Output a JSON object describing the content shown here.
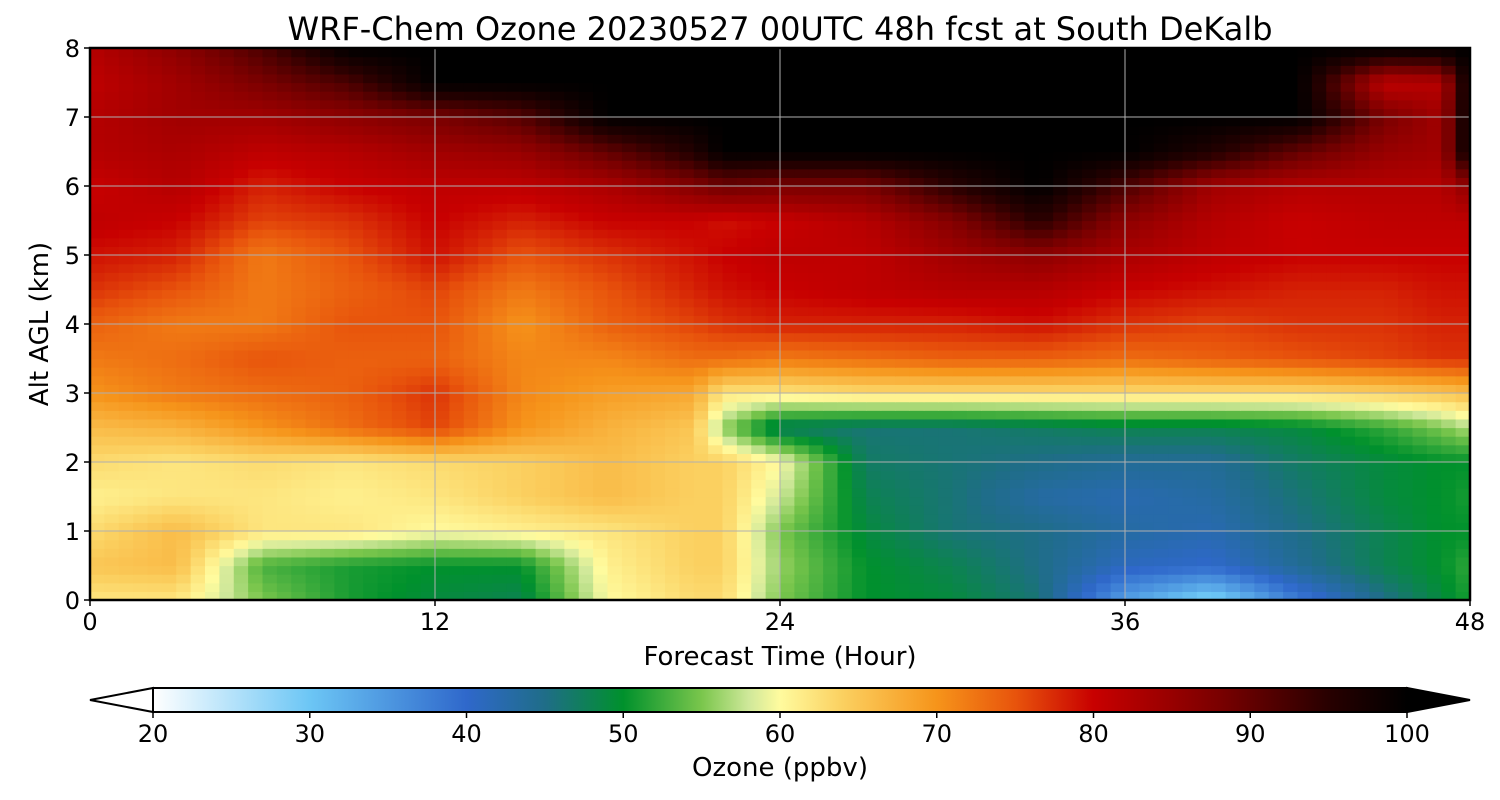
{
  "chart_data": {
    "type": "heatmap",
    "title": "WRF-Chem Ozone  20230527 00UTC 48h fcst at South DeKalb",
    "xlabel": "Forecast Time (Hour)",
    "ylabel": "Alt AGL (km)",
    "xlim": [
      0,
      48
    ],
    "ylim": [
      0,
      8
    ],
    "xticks": [
      "0",
      "12",
      "24",
      "36",
      "48"
    ],
    "yticks": [
      "0",
      "1",
      "2",
      "3",
      "4",
      "5",
      "6",
      "7",
      "8"
    ],
    "grid": true,
    "x": [
      0,
      3,
      6,
      9,
      12,
      15,
      18,
      21,
      22,
      24,
      27,
      30,
      33,
      36,
      39,
      42,
      45,
      47,
      48
    ],
    "y": [
      0,
      0.5,
      1,
      1.5,
      2,
      2.5,
      3,
      3.5,
      4,
      4.5,
      5,
      5.5,
      6,
      6.5,
      7,
      7.5,
      8
    ],
    "z": [
      [
        62,
        62,
        55,
        51,
        49,
        48,
        60,
        63,
        63,
        55,
        50,
        49,
        46,
        34,
        28,
        38,
        45,
        49,
        51
      ],
      [
        65,
        66,
        53,
        51,
        50,
        50,
        61,
        64,
        64,
        56,
        50,
        48,
        45,
        41,
        40,
        44,
        48,
        50,
        52
      ],
      [
        63,
        66,
        62,
        62,
        60,
        61,
        62,
        64,
        64,
        55,
        49,
        46,
        45,
        43,
        42,
        45,
        48,
        50,
        50
      ],
      [
        61,
        62,
        62,
        61,
        62,
        64,
        66,
        64,
        64,
        58,
        48,
        46,
        43,
        42,
        43,
        46,
        49,
        50,
        51
      ],
      [
        63,
        62,
        63,
        62,
        63,
        64,
        66,
        64,
        64,
        60,
        47,
        46,
        45,
        44,
        44,
        47,
        49,
        50,
        50
      ],
      [
        66,
        67,
        70,
        73,
        76,
        70,
        67,
        65,
        56,
        47,
        46,
        46,
        47,
        48,
        48,
        49,
        52,
        55,
        57
      ],
      [
        70,
        72,
        73,
        74,
        77,
        71,
        69,
        68,
        62,
        62,
        63,
        63,
        63,
        63,
        63,
        63,
        64,
        65,
        66
      ],
      [
        72,
        73,
        75,
        74,
        74,
        71,
        71,
        73,
        73,
        72,
        73,
        74,
        74,
        73,
        74,
        75,
        76,
        77,
        77
      ],
      [
        74,
        72,
        72,
        75,
        75,
        70,
        74,
        76,
        77,
        78,
        78,
        78,
        79,
        77,
        76,
        77,
        77,
        78,
        78
      ],
      [
        77,
        75,
        72,
        74,
        76,
        72,
        75,
        78,
        79,
        80,
        81,
        82,
        82,
        80,
        79,
        78,
        78,
        79,
        79
      ],
      [
        79,
        78,
        72,
        75,
        79,
        75,
        77,
        79,
        80,
        81,
        81,
        84,
        86,
        83,
        81,
        80,
        80,
        80,
        80
      ],
      [
        81,
        80,
        76,
        77,
        80,
        78,
        80,
        80,
        79,
        80,
        82,
        87,
        95,
        86,
        82,
        80,
        81,
        81,
        81
      ],
      [
        80,
        82,
        78,
        80,
        81,
        81,
        83,
        87,
        89,
        88,
        88,
        95,
        100,
        92,
        84,
        82,
        82,
        82,
        86
      ],
      [
        82,
        83,
        81,
        82,
        84,
        85,
        90,
        96,
        100,
        100,
        100,
        100,
        100,
        100,
        96,
        90,
        85,
        84,
        100
      ],
      [
        82,
        84,
        84,
        86,
        88,
        91,
        100,
        100,
        100,
        100,
        100,
        100,
        100,
        100,
        100,
        100,
        88,
        84,
        100
      ],
      [
        81,
        84,
        88,
        92,
        100,
        100,
        100,
        100,
        100,
        100,
        100,
        100,
        100,
        100,
        100,
        100,
        81,
        82,
        100
      ],
      [
        82,
        86,
        92,
        100,
        100,
        100,
        100,
        100,
        100,
        100,
        100,
        100,
        100,
        100,
        100,
        100,
        100,
        100,
        100
      ]
    ],
    "colorbar": {
      "label": "Ozone  (ppbv)",
      "min": 20,
      "max": 100,
      "ticks": [
        "20",
        "30",
        "40",
        "50",
        "60",
        "70",
        "80",
        "90",
        "100"
      ],
      "extend": "both",
      "stops": [
        [
          20,
          "#ffffff"
        ],
        [
          30,
          "#6cc6f5"
        ],
        [
          40,
          "#2f68cb"
        ],
        [
          45,
          "#1f6d88"
        ],
        [
          50,
          "#00912c"
        ],
        [
          55,
          "#7ac64c"
        ],
        [
          58,
          "#cfe89a"
        ],
        [
          60,
          "#fffb9e"
        ],
        [
          64,
          "#fbd060"
        ],
        [
          70,
          "#f6941a"
        ],
        [
          75,
          "#e8540c"
        ],
        [
          80,
          "#c80000"
        ],
        [
          88,
          "#7a0000"
        ],
        [
          95,
          "#280000"
        ],
        [
          100,
          "#000000"
        ]
      ]
    }
  }
}
